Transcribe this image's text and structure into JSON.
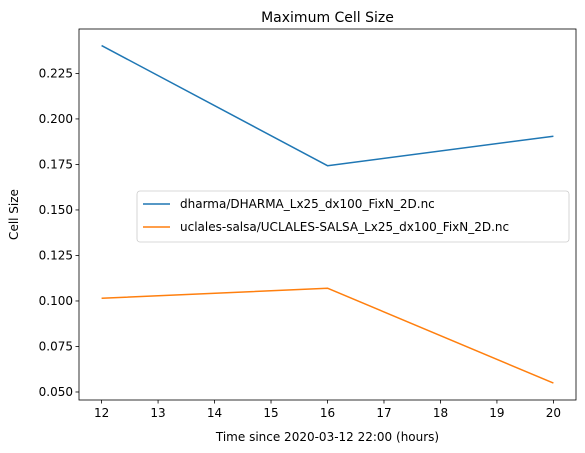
{
  "chart_data": {
    "type": "line",
    "title": "Maximum Cell Size",
    "xlabel": "Time since 2020-03-12 22:00 (hours)",
    "ylabel": "Cell Size",
    "xlim": [
      11.6,
      20.4
    ],
    "ylim": [
      0.0456,
      0.2494
    ],
    "xticks": [
      12,
      13,
      14,
      15,
      16,
      17,
      18,
      19,
      20
    ],
    "yticks": [
      0.05,
      0.075,
      0.1,
      0.125,
      0.15,
      0.175,
      0.2,
      0.225
    ],
    "ytick_labels": [
      "0.050",
      "0.075",
      "0.100",
      "0.125",
      "0.150",
      "0.175",
      "0.200",
      "0.225"
    ],
    "grid": false,
    "legend_position": "center-right",
    "series": [
      {
        "name": "dharma/DHARMA_Lx25_dx100_FixN_2D.nc",
        "color": "#1f77b4",
        "x": [
          12,
          16,
          20
        ],
        "y": [
          0.2403,
          0.1743,
          0.1905
        ]
      },
      {
        "name": "uclales-salsa/UCLALES-SALSA_Lx25_dx100_FixN_2D.nc",
        "color": "#ff7f0e",
        "x": [
          12,
          16,
          20
        ],
        "y": [
          0.1015,
          0.107,
          0.0549
        ]
      }
    ]
  }
}
